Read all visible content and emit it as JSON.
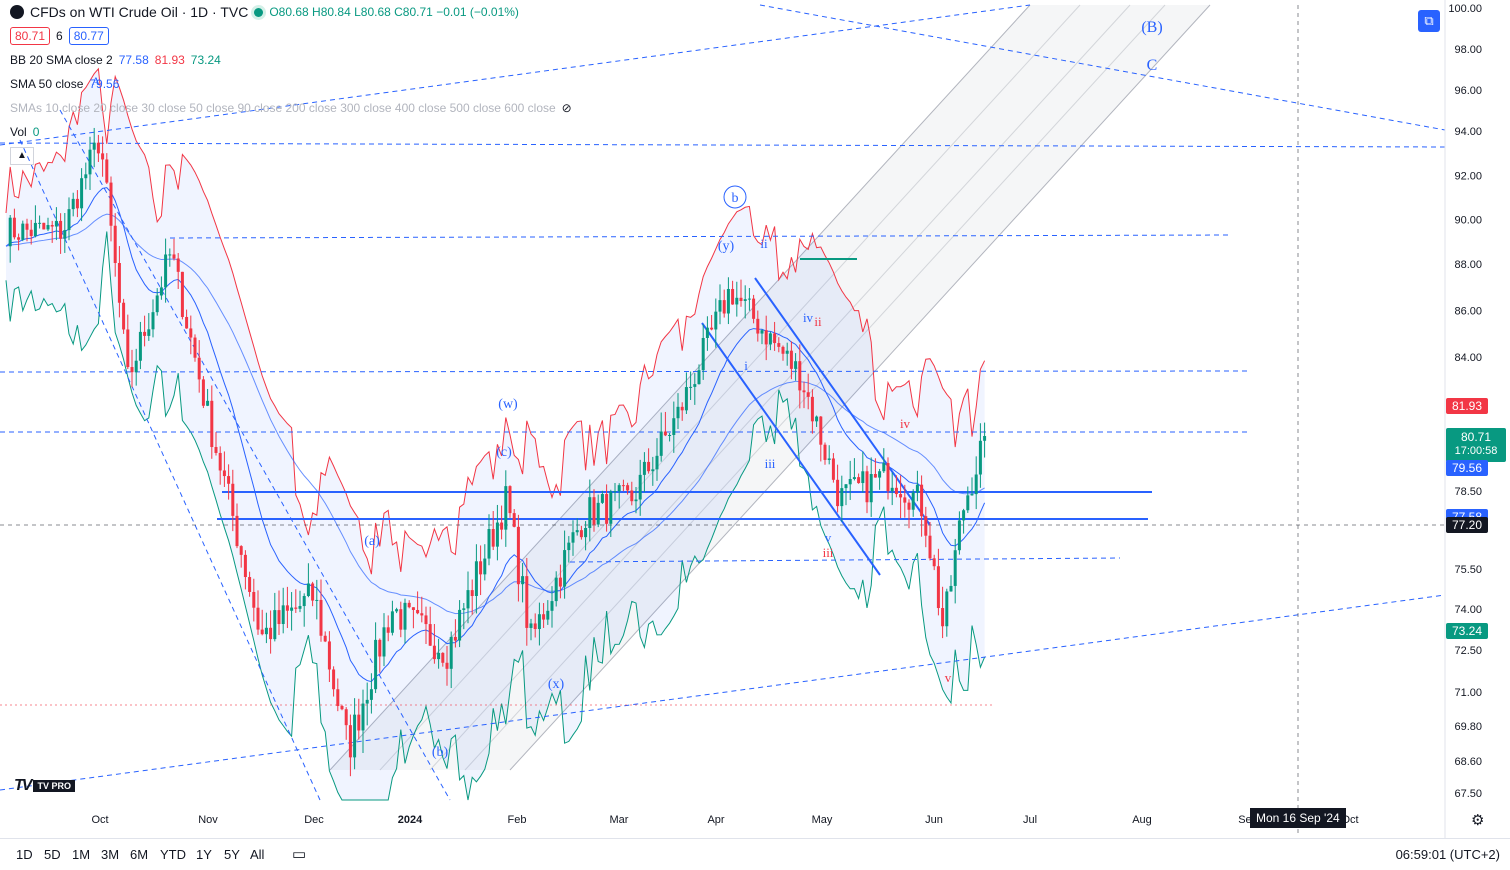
{
  "header": {
    "title": "CFDs on WTI Crude Oil · 1D · TVC",
    "ohlc": {
      "o": "O80.68",
      "h": "H80.84",
      "l": "L80.68",
      "c": "C80.71",
      "change": "−0.01 (−0.01%)"
    },
    "bid": "80.71",
    "spread": "6",
    "ask": "80.77"
  },
  "indicators": {
    "bb": {
      "label": "BB 20 SMA close 2",
      "v1": "77.58",
      "v2": "81.93",
      "v3": "73.24"
    },
    "sma50": {
      "label": "SMA 50 close",
      "v": "79.56"
    },
    "smas": {
      "label": "SMAs 10 close 20 close 30 close 50 close 90 close 200 close 300 close 400 close 500 close 600 close"
    },
    "vol": {
      "label": "Vol",
      "v": "0"
    }
  },
  "price_axis": {
    "ticks": [
      "100.00",
      "98.00",
      "96.00",
      "94.00",
      "92.00",
      "90.00",
      "88.00",
      "86.00",
      "84.00",
      "78.50",
      "75.50",
      "74.00",
      "72.50",
      "71.00",
      "69.80",
      "68.60",
      "67.50"
    ],
    "boxes": [
      {
        "text": "81.93",
        "color": "#f23645"
      },
      {
        "text": "80.71",
        "color": "#089981",
        "sub": "17:00:58"
      },
      {
        "text": "79.56",
        "color": "#2962ff"
      },
      {
        "text": "77.58",
        "color": "#2962ff"
      },
      {
        "text": "77.20",
        "color": "#131722"
      },
      {
        "text": "73.24",
        "color": "#089981"
      }
    ]
  },
  "time_axis": [
    "Oct",
    "Nov",
    "Dec",
    "2024",
    "Feb",
    "Mar",
    "Apr",
    "May",
    "Jun",
    "Jul",
    "Aug",
    "Sep",
    "Oct"
  ],
  "crosshair_date": "Mon 16 Sep '24",
  "waves": [
    "(B)",
    "C",
    "b",
    "(y)",
    "ii",
    "(w)",
    "(c)",
    "iv",
    "ii",
    "i",
    "iii",
    "iv",
    "v",
    "iii",
    "(a)",
    "(x)",
    "(b)",
    "v",
    "A"
  ],
  "ranges": [
    "1D",
    "5D",
    "1M",
    "3M",
    "6M",
    "YTD",
    "1Y",
    "5Y",
    "All"
  ],
  "clock": "06:59:01 (UTC+2)",
  "logo": "TV PRO",
  "chart_data": {
    "type": "candlestick",
    "title": "CFDs on WTI Crude Oil · 1D · TVC",
    "ylim": [
      67,
      100
    ],
    "x_range": [
      "2023-09-15",
      "2024-10-10"
    ],
    "key_prices": {
      "last": 80.71,
      "bb_upper": 81.93,
      "bb_mid": 77.58,
      "bb_lower": 73.24,
      "sma50": 79.56,
      "crosshair": 77.2
    },
    "series": [
      {
        "name": "WTI daily close",
        "x": [
          "2023-09-15",
          "2023-09-27",
          "2023-10-06",
          "2023-10-20",
          "2023-11-01",
          "2023-11-16",
          "2023-12-01",
          "2023-12-12",
          "2023-12-26",
          "2024-01-12",
          "2024-01-29",
          "2024-02-05",
          "2024-02-20",
          "2024-03-05",
          "2024-03-20",
          "2024-04-05",
          "2024-04-12",
          "2024-04-25",
          "2024-05-06",
          "2024-05-20",
          "2024-05-29",
          "2024-06-04",
          "2024-06-10",
          "2024-06-17"
        ],
        "y": [
          89.5,
          93.7,
          83.0,
          88.5,
          81.5,
          73.0,
          74.5,
          69.0,
          74.0,
          72.5,
          78.2,
          72.8,
          77.6,
          78.2,
          81.6,
          86.9,
          85.6,
          83.2,
          78.2,
          79.2,
          77.9,
          73.2,
          77.8,
          80.71
        ]
      }
    ]
  }
}
